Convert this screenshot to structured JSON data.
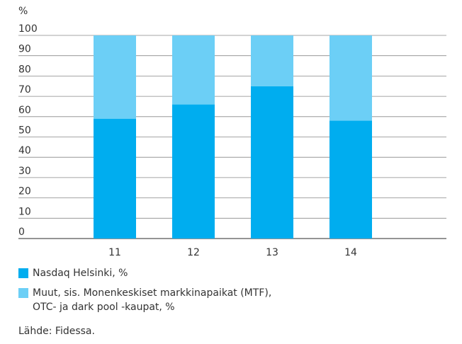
{
  "chart_data": {
    "type": "bar",
    "stacked": true,
    "ylabel": "%",
    "ylim": [
      0,
      100
    ],
    "yticks": [
      0,
      10,
      20,
      30,
      40,
      50,
      60,
      70,
      80,
      90,
      100
    ],
    "categories": [
      "11",
      "12",
      "13",
      "14"
    ],
    "grid": true,
    "legend_position": "bottom-left",
    "series": [
      {
        "name": "Nasdaq Helsinki, %",
        "values": [
          59,
          66,
          75,
          58
        ],
        "color": "#00adef"
      },
      {
        "name": "Muut, sis. Monenkeskiset markkinapaikat (MTF),\nOTC- ja dark pool -kaupat, %",
        "values": [
          41,
          34,
          25,
          42
        ],
        "color": "#6ccff6"
      }
    ]
  },
  "legend": {
    "items": [
      {
        "label": "Nasdaq Helsinki, %",
        "color": "#00adef"
      },
      {
        "label": "Muut, sis. Monenkeskiset markkinapaikat (MTF),\nOTC- ja dark pool -kaupat, %",
        "color": "#6ccff6"
      }
    ]
  },
  "source": "Lähde: Fidessa."
}
